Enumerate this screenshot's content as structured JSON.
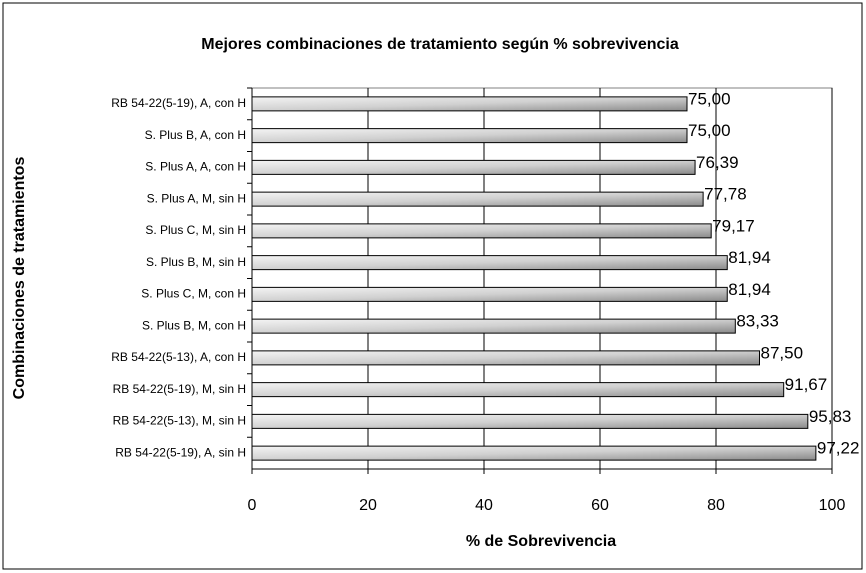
{
  "chart_data": {
    "type": "bar",
    "orientation": "horizontal",
    "title": "Mejores combinaciones de tratamiento según % sobrevivencia",
    "xlabel": "% de Sobrevivencia",
    "ylabel": "Combinaciones de tratamientos",
    "categories": [
      "RB 54-22(5-19), A, con H",
      "S. Plus B, A, con H",
      "S. Plus A, A, con H",
      "S. Plus A, M, sin H",
      "S. Plus C, M, sin H",
      "S. Plus B, M, sin H",
      "S. Plus C, M, con H",
      "S. Plus B, M, con H",
      "RB 54-22(5-13), A, con H",
      "RB 54-22(5-19), M, sin H",
      "RB 54-22(5-13), M, sin H",
      "RB 54-22(5-19), A, sin H"
    ],
    "values": [
      75.0,
      75.0,
      76.39,
      77.78,
      79.17,
      81.94,
      81.94,
      83.33,
      87.5,
      91.67,
      95.83,
      97.22
    ],
    "value_labels": [
      "75,00",
      "75,00",
      "76,39",
      "77,78",
      "79,17",
      "81,94",
      "81,94",
      "83,33",
      "87,50",
      "91,67",
      "95,83",
      "97,22"
    ],
    "color": "#a0a0a0",
    "xlim": [
      0,
      100
    ],
    "xticks": [
      0,
      20,
      40,
      60,
      80,
      100
    ],
    "grid": true
  }
}
